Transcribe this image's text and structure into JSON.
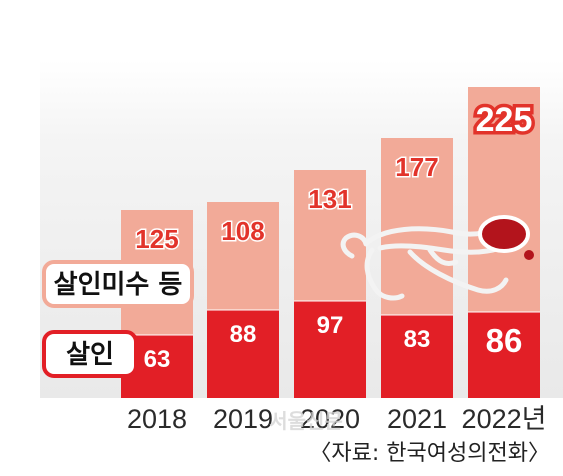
{
  "chart_data": {
    "type": "bar",
    "stacked": true,
    "categories": [
      "2018",
      "2019",
      "2020",
      "2021",
      "2022년"
    ],
    "series": [
      {
        "name": "살인",
        "values": [
          63,
          88,
          97,
          83,
          86
        ],
        "color": "#e21f26"
      },
      {
        "name": "살인미수 등",
        "values": [
          125,
          108,
          131,
          177,
          225
        ],
        "color": "#f2aa98"
      }
    ],
    "legend": {
      "items": [
        "살인미수 등",
        "살인"
      ],
      "placement": "left"
    },
    "source": "〈자료: 한국여성의전화〉",
    "watermark": "서울신문",
    "colors": {
      "background_panel": "#f0f0f0",
      "murder": "#e21f26",
      "attempt": "#f2aa98",
      "attempt_label_text": "#e2332a",
      "murder_label_text": "#ffffff"
    },
    "grid": false
  }
}
